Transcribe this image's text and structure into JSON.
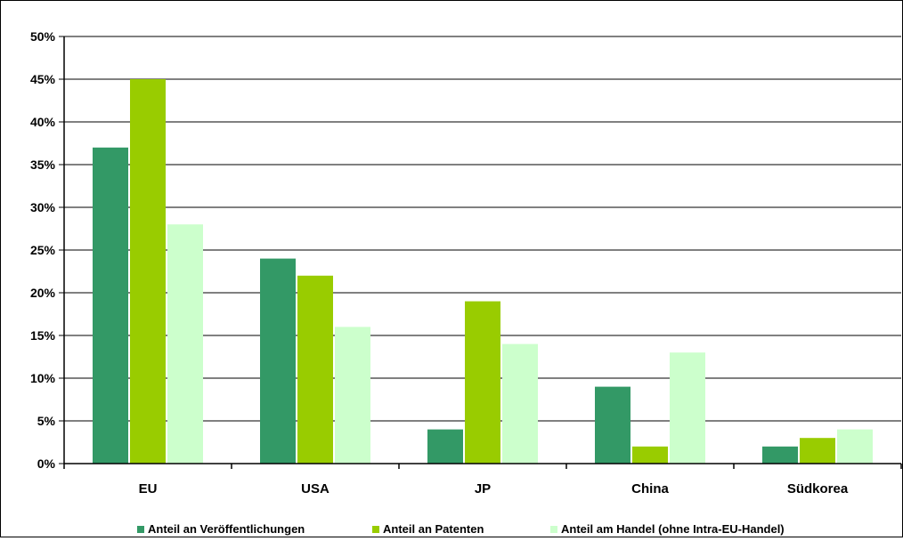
{
  "chart_data": {
    "type": "bar",
    "title": "",
    "xlabel": "",
    "ylabel": "",
    "ylim": [
      0,
      50
    ],
    "y_ticks": [
      "0%",
      "5%",
      "10%",
      "15%",
      "20%",
      "25%",
      "30%",
      "35%",
      "40%",
      "45%",
      "50%"
    ],
    "grid": true,
    "legend_position": "bottom",
    "categories": [
      "EU",
      "USA",
      "JP",
      "China",
      "Südkorea"
    ],
    "series": [
      {
        "name": "Anteil an Veröffentlichungen",
        "color": "#339966",
        "values": [
          37,
          24,
          4,
          9,
          2
        ]
      },
      {
        "name": "Anteil an Patenten",
        "color": "#99cc00",
        "values": [
          45,
          22,
          19,
          2,
          3
        ]
      },
      {
        "name": "Anteil am Handel (ohne Intra-EU-Handel)",
        "color": "#ccffcc",
        "values": [
          28,
          16,
          14,
          13,
          4
        ]
      }
    ]
  }
}
